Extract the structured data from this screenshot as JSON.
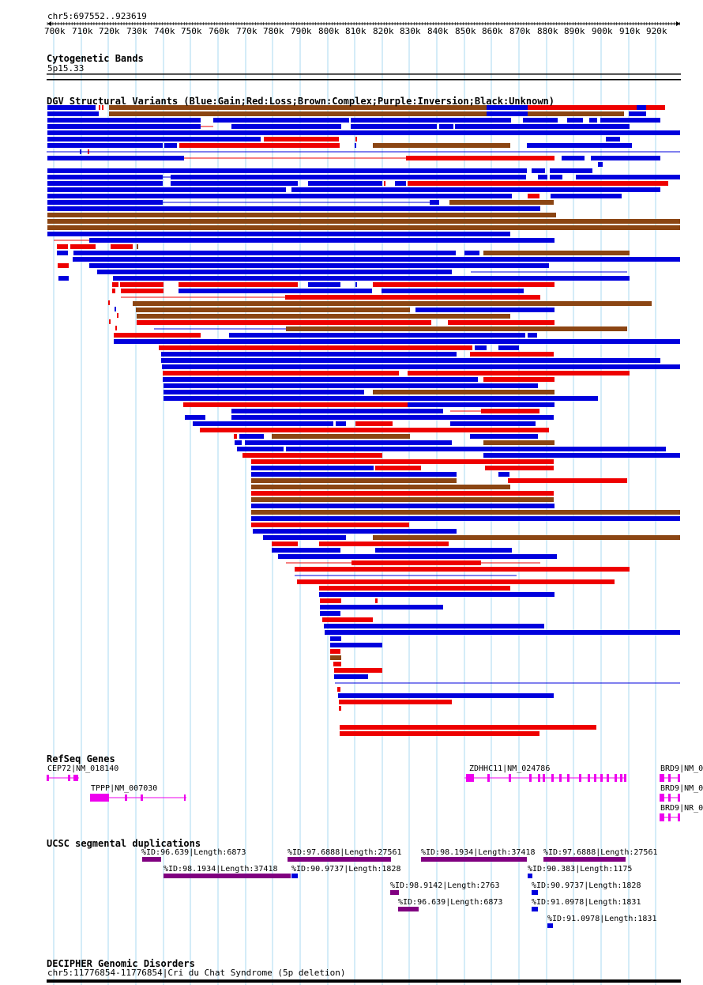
{
  "ruler": {
    "position_label": "chr5:697552..923619",
    "tick_labels": [
      "700k",
      "710k",
      "720k",
      "730k",
      "740k",
      "750k",
      "760k",
      "770k",
      "780k",
      "790k",
      "800k",
      "810k",
      "820k",
      "830k",
      "840k",
      "850k",
      "860k",
      "870k",
      "880k",
      "890k",
      "900k",
      "910k",
      "920k"
    ]
  },
  "cytobands": {
    "title": "Cytogenetic Bands",
    "band_label": "5p15.33"
  },
  "dgv": {
    "title": "DGV Structural Variants (Blue:Gain;Red:Loss;Brown:Complex;Purple:Inversion;Black:Unknown)",
    "colors": {
      "gain": "#0000dd",
      "loss": "#ee0000",
      "complex": "#8b4513",
      "inversion": "#800080",
      "unknown": "#000000"
    }
  },
  "refseq": {
    "title": "RefSeq Genes",
    "genes": [
      {
        "label": "CEP72|NM_018140"
      },
      {
        "label": "TPPP|NM_007030"
      },
      {
        "label": "ZDHHC11|NM_024786"
      },
      {
        "label": "BRD9|NM_0"
      },
      {
        "label": "BRD9|NM_0"
      },
      {
        "label": "BRD9|NR_0"
      }
    ],
    "color": "#ee00ee"
  },
  "segdups": {
    "title": "UCSC segmental duplications",
    "items": [
      {
        "label": "%ID:96.639|Length:6873"
      },
      {
        "label": "%ID:97.6888|Length:27561"
      },
      {
        "label": "%ID:98.1934|Length:37418"
      },
      {
        "label": "%ID:97.6888|Length:27561"
      },
      {
        "label": "%ID:98.1934|Length:37418"
      },
      {
        "label": "%ID:90.9737|Length:1828"
      },
      {
        "label": "%ID:90.383|Length:1175"
      },
      {
        "label": "%ID:98.9142|Length:2763"
      },
      {
        "label": "%ID:90.9737|Length:1828"
      },
      {
        "label": "%ID:96.639|Length:6873"
      },
      {
        "label": "%ID:91.0978|Length:1831"
      },
      {
        "label": "%ID:91.0978|Length:1831"
      }
    ],
    "colors": {
      "high": "#800080",
      "low": "#0000dd"
    }
  },
  "decipher": {
    "title": "DECIPHER Genomic Disorders",
    "item_label": "chr5:11776854-11776854|Cri du Chat Syndrome (5p deletion)"
  }
}
